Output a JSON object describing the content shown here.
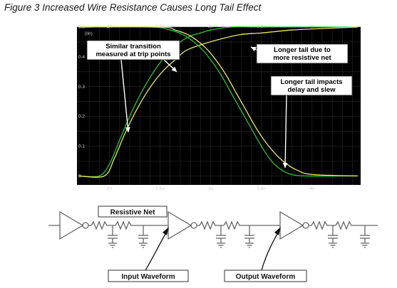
{
  "figure_title": "Figure 3 Increased Wire Resistance Causes Long Tail Effect",
  "colors": {
    "plot_background": "#000000",
    "grid": "#2b2b2b",
    "axis_text": "#c8c8c8",
    "green_trace": "#2fbf3a",
    "yellow_trace": "#e8e86a",
    "callout_fill": "#ffffff",
    "callout_text": "#000000"
  },
  "chart_data": {
    "type": "line",
    "title": "",
    "xlabel": "",
    "ylabel": "",
    "y_unit": "(lin)",
    "xlim": [
      1.68,
      4.48
    ],
    "ylim": [
      -0.03,
      0.5
    ],
    "x_ticks": [
      "2n",
      "2.5n",
      "3n",
      "3.5n",
      "4n"
    ],
    "x_tick_values": [
      2.0,
      2.5,
      3.0,
      3.5,
      4.0
    ],
    "y_ticks": [
      "0.5",
      "0.4",
      "0.3",
      "0.2",
      "0.1",
      "0"
    ],
    "y_tick_values": [
      0.5,
      0.4,
      0.3,
      0.2,
      0.1,
      0.0
    ],
    "grid": true,
    "legend": "none",
    "series": [
      {
        "color": "green",
        "x": [
          1.7,
          1.9,
          2.0,
          2.1,
          2.2,
          2.3,
          2.4,
          2.5,
          2.6,
          2.7,
          2.8,
          2.9,
          3.0,
          3.2,
          3.4,
          4.0,
          4.45
        ],
        "y": [
          0.0,
          0.0,
          0.04,
          0.12,
          0.2,
          0.27,
          0.33,
          0.38,
          0.42,
          0.45,
          0.47,
          0.48,
          0.49,
          0.5,
          0.5,
          0.5,
          0.5
        ]
      },
      {
        "color": "yellow",
        "x": [
          1.7,
          1.95,
          2.05,
          2.15,
          2.25,
          2.35,
          2.45,
          2.55,
          2.65,
          2.75,
          2.9,
          3.1,
          3.3,
          3.5,
          3.8,
          4.1,
          4.45
        ],
        "y": [
          0.0,
          0.0,
          0.06,
          0.14,
          0.21,
          0.27,
          0.32,
          0.36,
          0.39,
          0.42,
          0.44,
          0.46,
          0.475,
          0.48,
          0.49,
          0.495,
          0.5
        ]
      },
      {
        "color": "green",
        "x": [
          1.7,
          2.4,
          2.6,
          2.75,
          2.9,
          3.0,
          3.1,
          3.2,
          3.3,
          3.4,
          3.5,
          3.6,
          3.7,
          3.8,
          3.95,
          4.45
        ],
        "y": [
          0.5,
          0.5,
          0.49,
          0.47,
          0.43,
          0.39,
          0.34,
          0.28,
          0.22,
          0.16,
          0.1,
          0.05,
          0.02,
          0.005,
          0.0,
          0.0
        ]
      },
      {
        "color": "yellow",
        "x": [
          1.7,
          2.5,
          2.65,
          2.8,
          2.95,
          3.05,
          3.15,
          3.25,
          3.35,
          3.45,
          3.55,
          3.65,
          3.75,
          3.85,
          4.0,
          4.45
        ],
        "y": [
          0.5,
          0.5,
          0.49,
          0.47,
          0.43,
          0.39,
          0.34,
          0.28,
          0.22,
          0.16,
          0.11,
          0.07,
          0.04,
          0.02,
          0.005,
          0.0
        ]
      }
    ],
    "annotations": [
      {
        "lines": [
          "Similar transition",
          "measured at trip points"
        ]
      },
      {
        "lines": [
          "Longer tail due to",
          "more resistive net"
        ]
      },
      {
        "lines": [
          "Longer tail impacts",
          "delay and slew"
        ]
      }
    ]
  },
  "circuit": {
    "resistive_net_label": "Resistive Net",
    "input_label": "Input Waveform",
    "output_label": "Output Waveform"
  }
}
